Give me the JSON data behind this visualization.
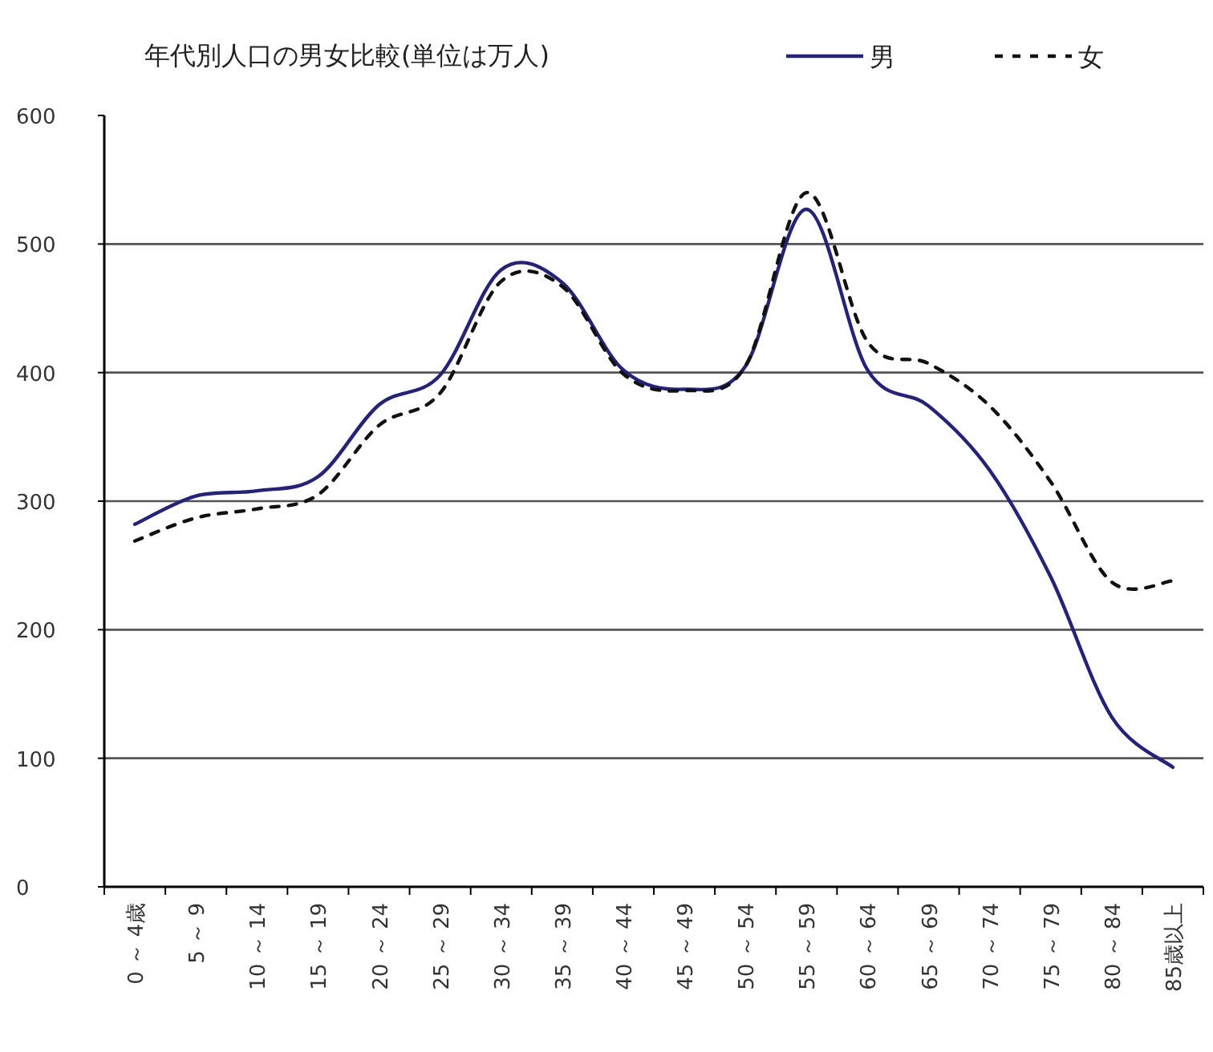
{
  "chart_data": {
    "type": "line",
    "title": "年代別人口の男女比較(単位は万人)",
    "categories": [
      "0 ～ 4歳",
      "5 ～ 9",
      "10 ～ 14",
      "15 ～ 19",
      "20 ～ 24",
      "25 ～ 29",
      "30 ～ 34",
      "35 ～ 39",
      "40 ～ 44",
      "45 ～ 49",
      "50 ～ 54",
      "55 ～ 59",
      "60 ～ 64",
      "65 ～ 69",
      "70 ～ 74",
      "75 ～ 79",
      "80 ～ 84",
      "85歳以上"
    ],
    "series": [
      {
        "name": "男",
        "color": "#23237f",
        "line_style": "solid",
        "values": [
          282,
          304,
          308,
          319,
          375,
          398,
          480,
          470,
          402,
          387,
          405,
          527,
          402,
          374,
          324,
          241,
          132,
          93
        ]
      },
      {
        "name": "女",
        "color": "#111111",
        "line_style": "dashed",
        "values": [
          269,
          287,
          294,
          305,
          359,
          384,
          471,
          467,
          399,
          386,
          405,
          540,
          424,
          407,
          374,
          315,
          237,
          238
        ]
      }
    ],
    "ylim": [
      0,
      600
    ],
    "yticks": [
      0,
      100,
      200,
      300,
      400,
      500,
      600
    ],
    "grid": "y",
    "legend": "top right",
    "marker": "none"
  }
}
